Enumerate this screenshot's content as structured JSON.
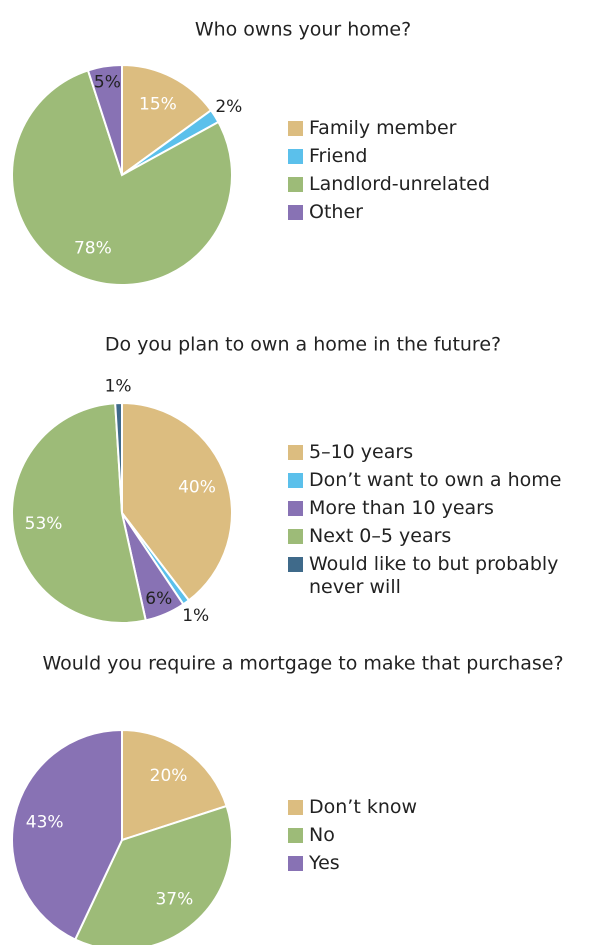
{
  "chart_data": [
    {
      "type": "pie",
      "title": "Who owns your home?",
      "categories": [
        "Family member",
        "Friend",
        "Landlord-unrelated",
        "Other"
      ],
      "values": [
        15,
        2,
        78,
        5
      ],
      "value_labels": [
        "15%",
        "2%",
        "78%",
        "5%"
      ],
      "colors": [
        "#dcbd80",
        "#5bc0eb",
        "#9dbb78",
        "#8872b4"
      ]
    },
    {
      "type": "pie",
      "title": "Do you plan to own a home in the future?",
      "categories": [
        "5–10 years",
        "Don’t want to own a home",
        "More than 10 years",
        "Next 0–5 years",
        "Would like to but probably never will"
      ],
      "values": [
        40,
        1,
        6,
        53,
        1
      ],
      "value_labels": [
        "40%",
        "1%",
        "6%",
        "53%",
        "1%"
      ],
      "colors": [
        "#dcbd80",
        "#5bc0eb",
        "#8872b4",
        "#9dbb78",
        "#3f6a8a"
      ]
    },
    {
      "type": "pie",
      "title": "Would you require a mortgage to make that purchase?",
      "categories": [
        "Don’t know",
        "No",
        "Yes"
      ],
      "values": [
        20,
        37,
        43
      ],
      "value_labels": [
        "20%",
        "37%",
        "43%"
      ],
      "colors": [
        "#dcbd80",
        "#9dbb78",
        "#8872b4"
      ]
    }
  ]
}
